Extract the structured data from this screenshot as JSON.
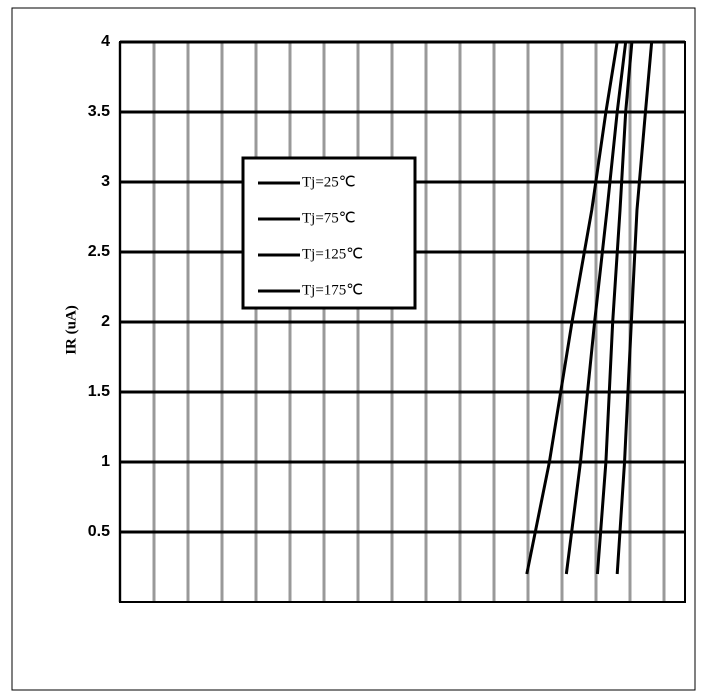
{
  "chart_data": {
    "type": "line",
    "y_label": "IR (uA)",
    "ylim": [
      0,
      4
    ],
    "yticks": [
      0.5,
      1,
      1.5,
      2,
      2.5,
      3,
      3.5,
      4
    ],
    "xlim": [
      0,
      1000
    ],
    "grid": true,
    "series": [
      {
        "name": "Tj=25℃",
        "color": "#000000",
        "x": [
          880,
          893,
          905,
          915,
          930,
          941
        ],
        "values": [
          0.2,
          1,
          2,
          2.8,
          3.5,
          4
        ]
      },
      {
        "name": "Tj=75℃",
        "color": "#000000",
        "x": [
          845,
          860,
          872,
          885,
          895,
          906
        ],
        "values": [
          0.2,
          1,
          2,
          2.8,
          3.5,
          4
        ]
      },
      {
        "name": "Tj=125℃",
        "color": "#000000",
        "x": [
          790,
          815,
          840,
          862,
          880,
          895
        ],
        "values": [
          0.2,
          1,
          2,
          2.8,
          3.5,
          4
        ]
      },
      {
        "name": "Tj=175℃",
        "color": "#000000",
        "x": [
          720,
          760,
          800,
          835,
          860,
          880
        ],
        "values": [
          0.2,
          1,
          2,
          2.8,
          3.5,
          4
        ]
      }
    ],
    "legend": "upper-left"
  }
}
